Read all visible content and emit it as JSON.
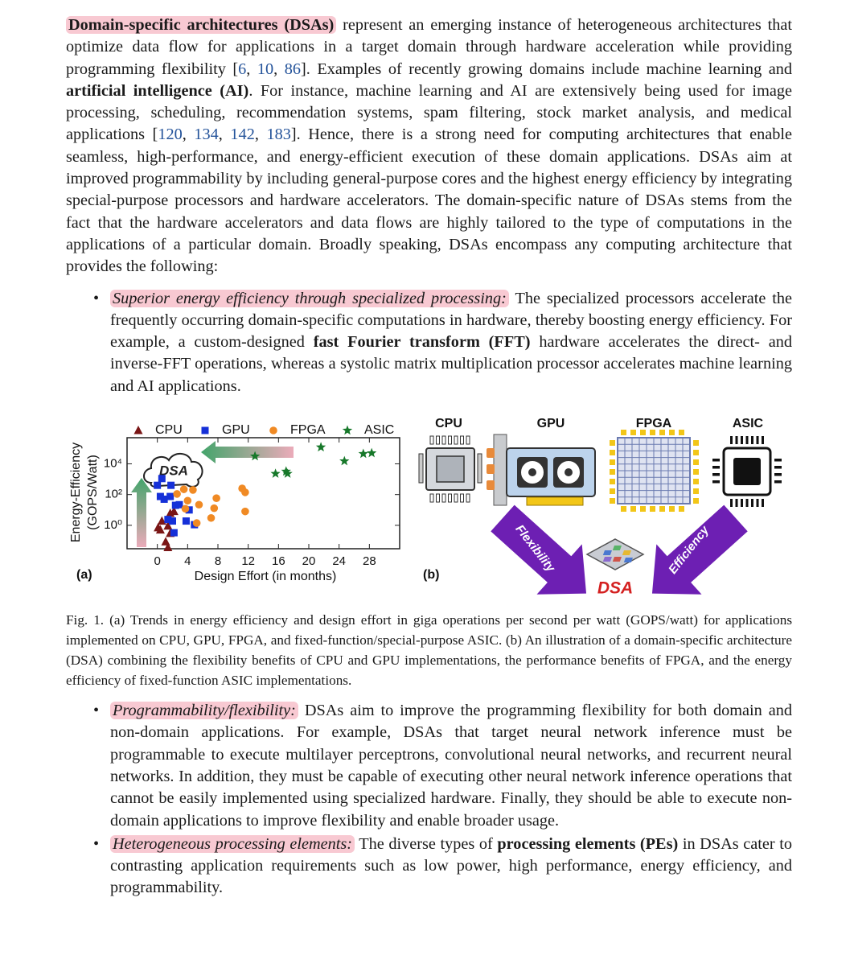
{
  "intro": [
    "Domain-specific architectures (DSAs)",
    " represent an emerging instance of heterogeneous architectures that optimize data flow for applications in a target domain through hardware acceleration while providing programming flexibility [",
    "6",
    ", ",
    "10",
    ", ",
    "86",
    "]. Examples of recently growing domains include machine learning and ",
    "artificial intelligence (AI)",
    ". For instance, machine learning and AI are extensively being used for image processing, scheduling, recommendation systems, spam filtering, stock market analysis, and medical applications [",
    "120",
    ", ",
    "134",
    ", ",
    "142",
    ", ",
    "183",
    "]. Hence, there is a strong need for computing architectures that enable seamless, high-performance, and energy-efficient execution of these domain applications. DSAs aim at improved programmability by including general-purpose cores and the highest energy efficiency by integrating special-purpose processors and hardware accelerators. The domain-specific nature of DSAs stems from the fact that the hardware accelerators and data flows are highly tailored to the type of computations in the applications of a particular domain. Broadly speaking, DSAs encompass any computing architecture that provides the following:"
  ],
  "bullets": [
    {
      "lead": "Superior energy efficiency through specialized processing:",
      "runs": [
        " The specialized processors accelerate the frequently occurring domain-specific computations in hardware, thereby boosting energy efficiency. For example, a custom-designed ",
        "fast Fourier transform (FFT)",
        " hardware accelerates the direct- and inverse-FFT operations, whereas a systolic matrix multiplication processor accelerates machine learning and AI applications."
      ]
    },
    {
      "lead": "Programmability/flexibility:",
      "runs": [
        " DSAs aim to improve the programming flexibility for both domain and non-domain applications. For example, DSAs that target neural network inference must be programmable to execute multilayer perceptrons, convolutional neural networks, and recurrent neural networks. In addition, they must be capable of executing other neural network inference operations that cannot be easily implemented using specialized hardware. Finally, they should be able to execute non-domain applications to improve flexibility and enable broader usage."
      ]
    },
    {
      "lead": "Heterogeneous processing elements:",
      "runs": [
        " The diverse types of ",
        "processing elements (PEs)",
        " in DSAs cater to contrasting application requirements such as low power, high performance, energy efficiency, and programmability."
      ]
    }
  ],
  "chart_data": {
    "type": "scatter",
    "panel": "(a)",
    "x_label": "Design Effort (in months)",
    "y_label": [
      "Energy-Efficiency",
      "(GOPS/Watt)"
    ],
    "annotation": "DSA",
    "xlim": [
      -4,
      32
    ],
    "xticks": [
      0,
      4,
      8,
      12,
      16,
      20,
      24,
      28
    ],
    "ylim": [
      0.03,
      500000
    ],
    "yscale": "log",
    "yticks": [
      {
        "value": 1,
        "label": "10⁰"
      },
      {
        "value": 100,
        "label": "10²"
      },
      {
        "value": 10000,
        "label": "10⁴"
      }
    ],
    "legend": "top",
    "series": [
      {
        "name": "CPU",
        "color": "#7a1616",
        "marker": "triangle",
        "x": [
          0.6,
          1.4,
          0.1,
          1.7,
          1.1,
          1.4,
          2.2,
          0.4,
          1.7
        ],
        "values": [
          1.9,
          0.9,
          0.7,
          0.3,
          0.085,
          0.036,
          8,
          0.5,
          6
        ]
      },
      {
        "name": "GPU",
        "color": "#1530d8",
        "marker": "square",
        "x": [
          0,
          0.6,
          1.8,
          0.9,
          2.4,
          2.0,
          1.4,
          3.8,
          4.9,
          2.9,
          4.2,
          1.7,
          0.4,
          2.2
        ],
        "values": [
          400,
          1100,
          400,
          50,
          20,
          1.9,
          2.4,
          1.9,
          1.1,
          22,
          10,
          75,
          75,
          0.33
        ]
      },
      {
        "name": "FPGA",
        "color": "#f08a24",
        "marker": "circle",
        "x": [
          3.5,
          4.7,
          2.6,
          3.7,
          5.5,
          7.8,
          7.5,
          11.2,
          11.6,
          11.6,
          4.0,
          7.1,
          5.2
        ],
        "values": [
          220,
          200,
          110,
          12,
          22,
          58,
          13,
          250,
          140,
          8,
          40,
          3,
          1.4
        ]
      },
      {
        "name": "ASIC",
        "color": "#17782a",
        "marker": "star",
        "x": [
          12.9,
          15.6,
          17.2,
          17.0,
          21.6,
          24.7,
          27.2,
          28.3
        ],
        "values": [
          31000,
          2300,
          2300,
          3200,
          120000,
          15000,
          45000,
          50000
        ]
      }
    ]
  },
  "diagram": {
    "panel": "(b)",
    "nodes": [
      "CPU",
      "GPU",
      "FPGA",
      "ASIC"
    ],
    "arrows": [
      "Flexibility",
      "Efficiency"
    ],
    "target": "DSA"
  },
  "caption": {
    "label": "Fig. 1.",
    "text": "(a) Trends in energy efficiency and design effort in giga operations per second per watt (GOPS/watt) for applications implemented on CPU, GPU, FPGA, and fixed-function/special-purpose ASIC. (b) An illustration of a domain-specific architecture (DSA) combining the flexibility benefits of CPU and GPU implementations, the performance benefits of FPGA, and the energy efficiency of fixed-function ASIC implementations."
  }
}
